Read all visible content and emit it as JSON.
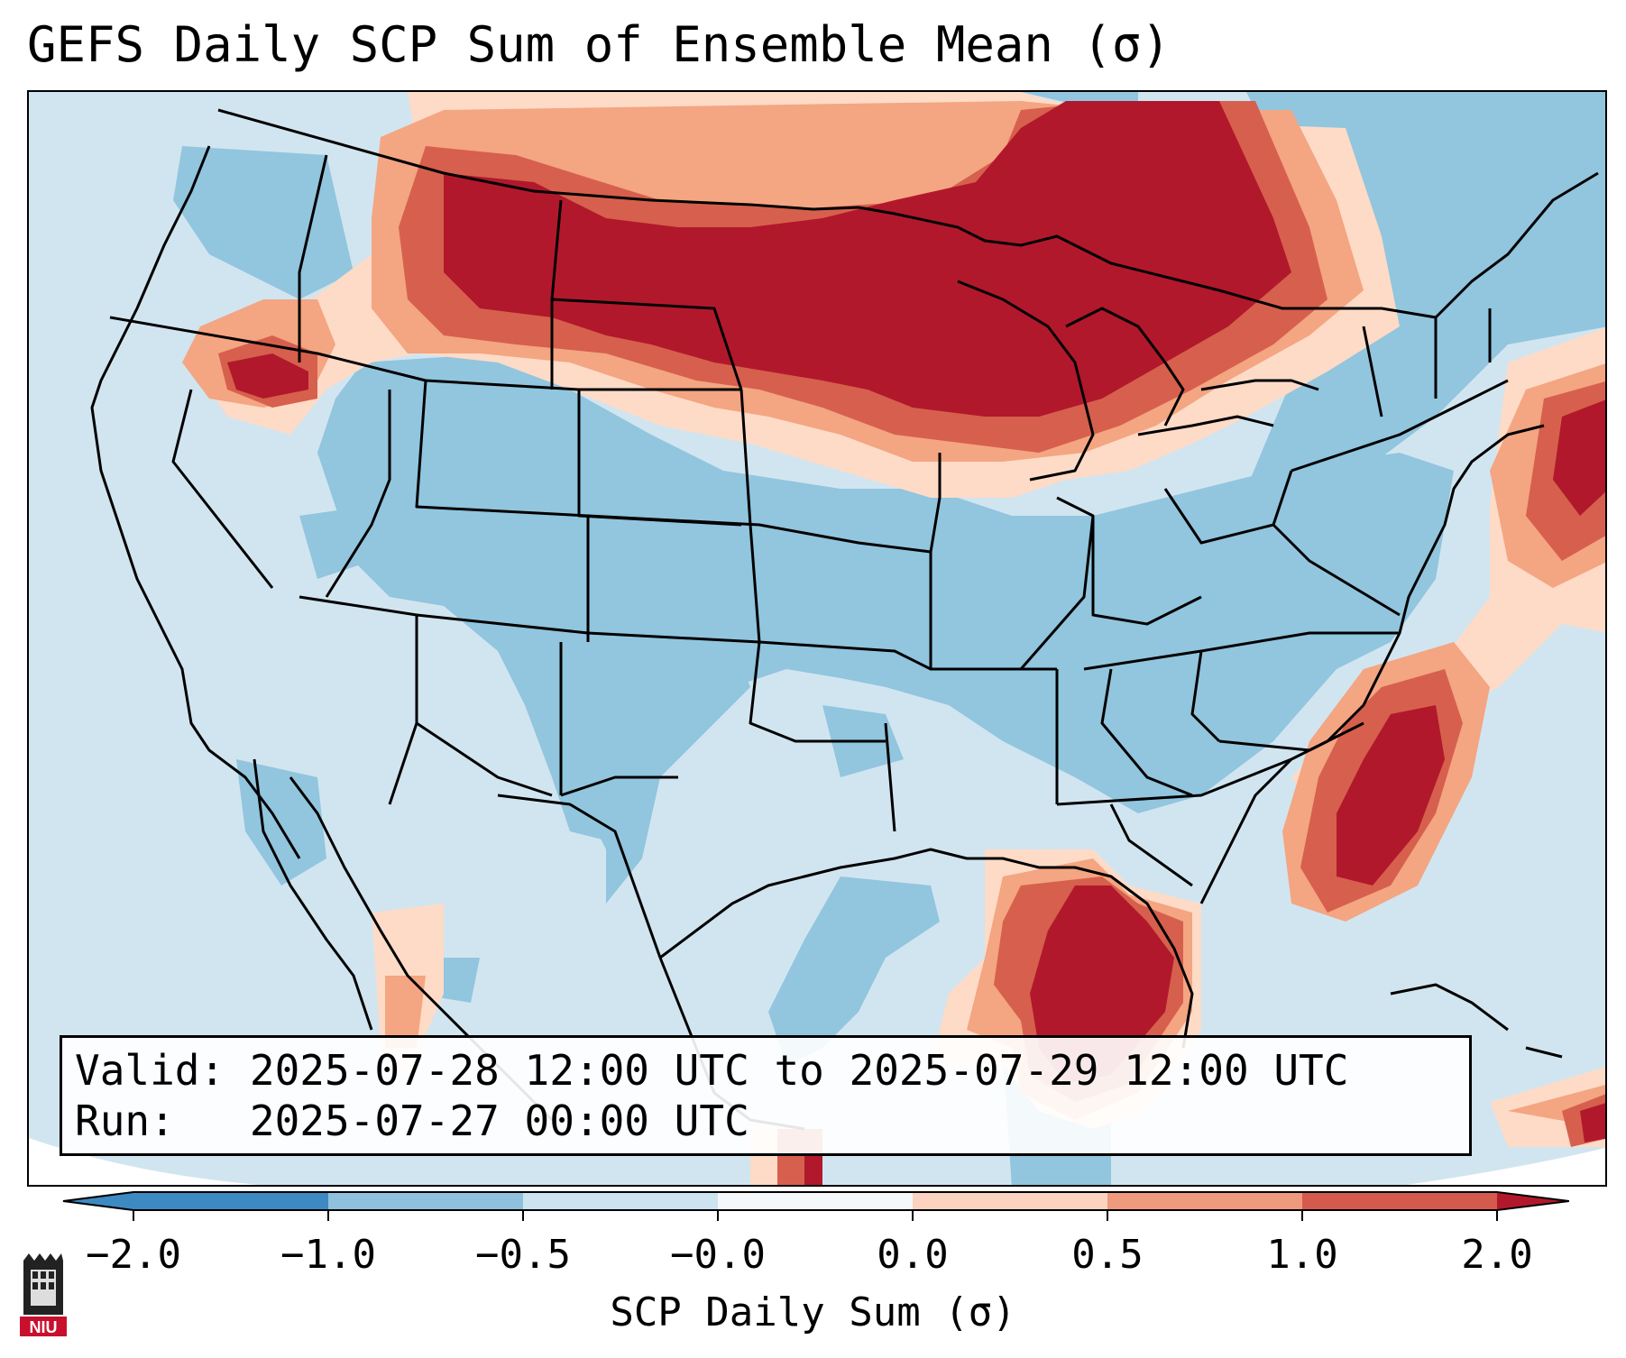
{
  "title": "GEFS Daily SCP Sum of Ensemble Mean (σ)",
  "valid": {
    "label": "Valid:",
    "value": "2025-07-28 12:00 UTC to 2025-07-29 12:00 UTC"
  },
  "run": {
    "label": "Run:",
    "value": "2025-07-27 00:00 UTC"
  },
  "colorbar": {
    "label": "SCP Daily Sum (σ)",
    "ticks": [
      "−2.0",
      "−1.0",
      "−0.5",
      "−0.0",
      "0.0",
      "0.5",
      "1.0",
      "2.0"
    ],
    "colors": [
      "#3d8ac3",
      "#8fc1dd",
      "#cde3ef",
      "#f4f8fa",
      "#fbd3c0",
      "#ef9a7c",
      "#d45a4e",
      "#b2182b"
    ]
  },
  "map_colors": {
    "background": "#d1e5f0",
    "light_negative": "#d1e5f0",
    "medium_negative": "#92c5de",
    "light_positive": "#fddbc7",
    "medium_positive": "#f4a582",
    "strong_positive": "#d6604d",
    "extreme_positive": "#b2182b"
  },
  "logo_text": "NIU",
  "icons": [
    "niu-logo-icon"
  ]
}
